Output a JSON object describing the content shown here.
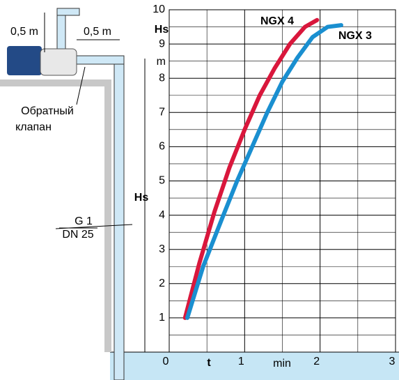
{
  "chart_data": {
    "type": "line",
    "x_label": "t",
    "x_unit": "min",
    "y_label": "Hs",
    "y_unit": "m",
    "xlim": [
      0,
      3
    ],
    "xticks": [
      0,
      1,
      2,
      3
    ],
    "xminor": [
      0.5,
      1.5,
      2.5
    ],
    "ylim": [
      0,
      10
    ],
    "yticks": [
      1,
      2,
      3,
      4,
      5,
      6,
      7,
      8,
      9,
      10
    ],
    "yminor": [
      0.5,
      1.5,
      2.5,
      3.5,
      4.5,
      5.5,
      6.5,
      7.5,
      8.5,
      9.5
    ],
    "series": [
      {
        "name": "NGX 4",
        "color": "#d9173c",
        "x": [
          0.21,
          0.4,
          0.6,
          0.8,
          1.0,
          1.2,
          1.4,
          1.6,
          1.8,
          1.96
        ],
        "values": [
          1,
          2.6,
          4.1,
          5.4,
          6.5,
          7.5,
          8.3,
          9.0,
          9.5,
          9.7
        ]
      },
      {
        "name": "NGX 3",
        "color": "#1a8fd0",
        "x": [
          0.24,
          0.45,
          0.7,
          0.9,
          1.1,
          1.3,
          1.5,
          1.7,
          1.9,
          2.1,
          2.28
        ],
        "values": [
          1,
          2.5,
          3.9,
          5.0,
          6.0,
          7.0,
          7.9,
          8.6,
          9.2,
          9.5,
          9.55
        ]
      }
    ],
    "annotations": [
      "0,5 m",
      "0,5 m",
      "Обратный",
      "клапан",
      "Hs",
      "G 1",
      "DN 25"
    ]
  }
}
